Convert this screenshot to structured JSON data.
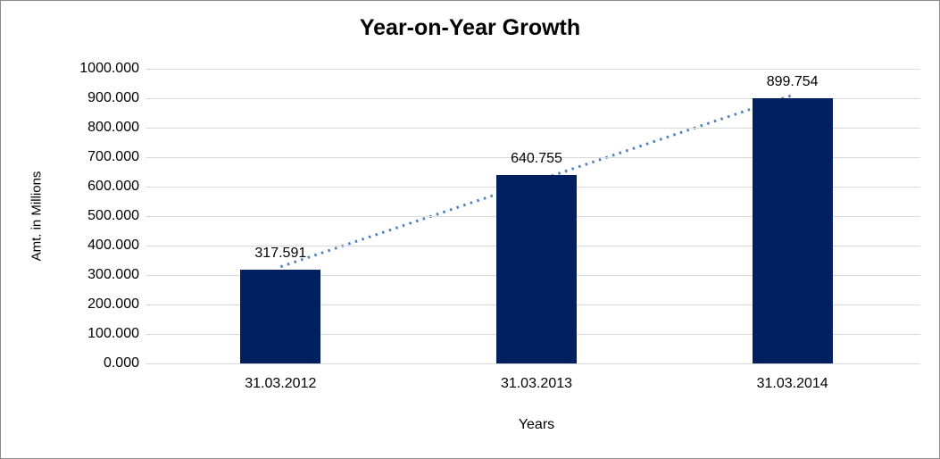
{
  "frame": {
    "background": "#ffffff",
    "border_color": "#8c8c8c"
  },
  "chart_data": {
    "type": "bar",
    "title": "Year-on-Year Growth",
    "xlabel": "Years",
    "ylabel": "Amt. in Millions",
    "categories": [
      "31.03.2012",
      "31.03.2013",
      "31.03.2014"
    ],
    "values": [
      317.591,
      640.755,
      899.754
    ],
    "data_labels": [
      "317.591",
      "640.755",
      "899.754"
    ],
    "ylim": [
      0,
      1000
    ],
    "ytick_step": 100,
    "ytick_labels": [
      "0.000",
      "100.000",
      "200.000",
      "300.000",
      "400.000",
      "500.000",
      "600.000",
      "700.000",
      "800.000",
      "900.000",
      "1000.000"
    ],
    "grid": "horizontal",
    "legend": "none",
    "bar_color": "#012060",
    "gridline_color": "#d9d9d9",
    "text_color": "#000000",
    "trendline": {
      "type": "linear",
      "style": "dotted",
      "color": "#4e81bd"
    }
  }
}
